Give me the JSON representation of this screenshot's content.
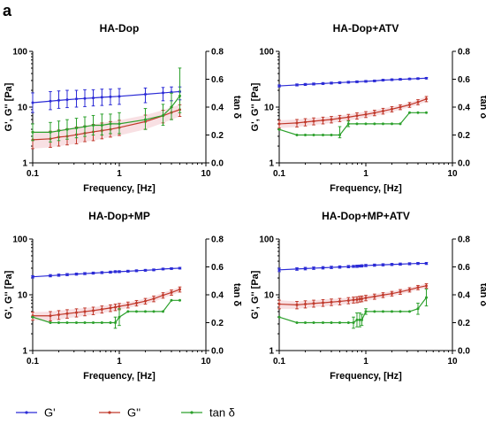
{
  "figure_label": "a",
  "colors": {
    "G_prime": "#2b2bd6",
    "G_double_prime": "#c0392b",
    "tan_delta": "#2ca02c",
    "axis": "#000000",
    "band": "#f3c6cc"
  },
  "legend": [
    {
      "label": "G'",
      "series": "G_prime"
    },
    {
      "label": "G''",
      "series": "G_double_prime"
    },
    {
      "label": "tan δ",
      "series": "tan_delta"
    }
  ],
  "chart_data": [
    {
      "type": "line",
      "title": "HA-Dop",
      "xlabel": "Frequency, [Hz]",
      "ylabel": "G', G'' [Pa]",
      "ylabel_right": "tan δ",
      "x_scale": "log",
      "xlim": [
        0.1,
        10
      ],
      "x_ticks": [
        "0.1",
        "1",
        "10"
      ],
      "y_scale": "log",
      "ylim": [
        1,
        100
      ],
      "y_ticks": [
        "1",
        "10",
        "100"
      ],
      "y2_scale": "linear",
      "y2lim": [
        0,
        0.8
      ],
      "y2_ticks": [
        "0.0",
        "0.2",
        "0.4",
        "0.6",
        "0.8"
      ],
      "grid": false,
      "x": [
        0.1,
        0.16,
        0.2,
        0.25,
        0.32,
        0.4,
        0.5,
        0.63,
        0.79,
        1.0,
        2.0,
        3.2,
        4.0,
        5.0
      ],
      "series": [
        {
          "key": "G_prime",
          "axis": "left",
          "values": [
            12.0,
            12.8,
            13.2,
            13.6,
            14.0,
            14.3,
            14.6,
            15.0,
            15.3,
            15.6,
            17.0,
            18.0,
            18.5,
            19.0
          ],
          "err_low": [
            8.0,
            9.0,
            9.5,
            9.8,
            10.0,
            10.2,
            10.5,
            10.7,
            11.0,
            11.2,
            12.0,
            13.0,
            13.0,
            13.5
          ],
          "err_high": [
            18.0,
            19.0,
            19.5,
            20.0,
            20.0,
            20.5,
            20.5,
            21.0,
            21.0,
            21.5,
            22.0,
            22.5,
            23.0,
            23.0
          ]
        },
        {
          "key": "G_double_prime",
          "axis": "left",
          "values": [
            2.6,
            2.7,
            2.9,
            3.0,
            3.2,
            3.4,
            3.6,
            3.8,
            4.0,
            4.3,
            5.5,
            7.0,
            8.0,
            9.0
          ],
          "err_low": [
            1.8,
            1.9,
            2.0,
            2.1,
            2.2,
            2.4,
            2.5,
            2.7,
            2.9,
            3.1,
            4.0,
            5.2,
            6.0,
            6.8
          ],
          "err_high": [
            3.6,
            3.7,
            3.9,
            4.1,
            4.4,
            4.6,
            4.9,
            5.2,
            5.5,
            5.8,
            7.2,
            8.8,
            10.0,
            11.0
          ]
        },
        {
          "key": "tan_delta",
          "axis": "right",
          "values": [
            0.22,
            0.22,
            0.23,
            0.24,
            0.25,
            0.26,
            0.27,
            0.27,
            0.28,
            0.28,
            0.31,
            0.34,
            0.4,
            0.48
          ],
          "err_low": [
            0.16,
            0.15,
            0.16,
            0.17,
            0.18,
            0.19,
            0.2,
            0.2,
            0.21,
            0.21,
            0.24,
            0.27,
            0.31,
            0.36
          ],
          "err_high": [
            0.28,
            0.29,
            0.3,
            0.31,
            0.32,
            0.33,
            0.34,
            0.35,
            0.35,
            0.36,
            0.39,
            0.42,
            0.5,
            0.68
          ]
        }
      ]
    },
    {
      "type": "line",
      "title": "HA-Dop+ATV",
      "xlabel": "Frequency, [Hz]",
      "ylabel": "G', G'' [Pa]",
      "ylabel_right": "tan δ",
      "x_scale": "log",
      "xlim": [
        0.1,
        10
      ],
      "x_ticks": [
        "0.1",
        "1",
        "10"
      ],
      "y_scale": "log",
      "ylim": [
        1,
        100
      ],
      "y_ticks": [
        "1",
        "10",
        "100"
      ],
      "y2_scale": "linear",
      "y2lim": [
        0,
        0.8
      ],
      "y2_ticks": [
        "0.0",
        "0.2",
        "0.4",
        "0.6",
        "0.8"
      ],
      "grid": false,
      "x": [
        0.1,
        0.16,
        0.2,
        0.25,
        0.32,
        0.4,
        0.5,
        0.63,
        0.79,
        1.0,
        1.26,
        1.58,
        2.0,
        2.5,
        3.2,
        4.0,
        5.0
      ],
      "series": [
        {
          "key": "G_prime",
          "axis": "left",
          "values": [
            24.0,
            25.0,
            25.5,
            26.0,
            26.5,
            27.0,
            27.5,
            28.0,
            28.5,
            29.0,
            29.5,
            30.5,
            31.0,
            31.5,
            32.0,
            32.5,
            33.0
          ],
          "err_low": [
            23.0,
            24.0,
            24.5,
            25.0,
            25.5,
            26.0,
            26.5,
            27.0,
            27.5,
            28.0,
            28.5,
            29.5,
            30.0,
            30.5,
            31.0,
            31.5,
            32.0
          ],
          "err_high": [
            25.0,
            26.0,
            26.5,
            27.0,
            27.5,
            28.0,
            28.5,
            29.0,
            29.5,
            30.0,
            30.5,
            31.5,
            32.0,
            32.5,
            33.0,
            33.5,
            34.0
          ]
        },
        {
          "key": "G_double_prime",
          "axis": "left",
          "values": [
            5.0,
            5.2,
            5.4,
            5.6,
            5.8,
            6.0,
            6.3,
            6.6,
            7.0,
            7.4,
            7.9,
            8.5,
            9.2,
            10.0,
            11.0,
            12.3,
            14.0
          ],
          "err_low": [
            4.2,
            4.4,
            4.6,
            4.8,
            5.0,
            5.2,
            5.5,
            5.8,
            6.1,
            6.5,
            7.0,
            7.5,
            8.2,
            9.0,
            9.9,
            11.0,
            12.5
          ],
          "err_high": [
            5.8,
            6.0,
            6.2,
            6.4,
            6.6,
            6.8,
            7.1,
            7.4,
            7.9,
            8.3,
            8.8,
            9.5,
            10.2,
            11.0,
            12.1,
            13.6,
            15.5
          ]
        },
        {
          "key": "tan_delta",
          "axis": "right",
          "values": [
            0.24,
            0.2,
            0.2,
            0.2,
            0.2,
            0.2,
            0.2,
            0.28,
            0.28,
            0.28,
            0.28,
            0.28,
            0.28,
            0.28,
            0.36,
            0.36,
            0.36
          ],
          "err_low": [
            0.24,
            0.2,
            0.2,
            0.2,
            0.2,
            0.2,
            0.18,
            0.26,
            0.28,
            0.28,
            0.28,
            0.28,
            0.28,
            0.28,
            0.36,
            0.36,
            0.36
          ],
          "err_high": [
            0.24,
            0.2,
            0.2,
            0.2,
            0.2,
            0.2,
            0.26,
            0.3,
            0.28,
            0.28,
            0.28,
            0.28,
            0.28,
            0.28,
            0.36,
            0.36,
            0.36
          ]
        }
      ]
    },
    {
      "type": "line",
      "title": "HA-Dop+MP",
      "xlabel": "Frequency, [Hz]",
      "ylabel": "G', G'' [Pa]",
      "ylabel_right": "tan δ",
      "x_scale": "log",
      "xlim": [
        0.1,
        10
      ],
      "x_ticks": [
        "0.1",
        "1",
        "10"
      ],
      "y_scale": "log",
      "ylim": [
        1,
        100
      ],
      "y_ticks": [
        "1",
        "10",
        "100"
      ],
      "y2_scale": "linear",
      "y2lim": [
        0,
        0.8
      ],
      "y2_ticks": [
        "0.0",
        "0.2",
        "0.4",
        "0.6",
        "0.8"
      ],
      "grid": false,
      "x": [
        0.1,
        0.16,
        0.2,
        0.25,
        0.32,
        0.4,
        0.5,
        0.63,
        0.79,
        0.9,
        1.0,
        1.26,
        1.58,
        2.0,
        2.5,
        3.2,
        4.0,
        5.0
      ],
      "series": [
        {
          "key": "G_prime",
          "axis": "left",
          "values": [
            21.0,
            22.0,
            22.5,
            23.0,
            23.5,
            24.0,
            24.5,
            25.0,
            25.5,
            26.0,
            26.0,
            26.5,
            27.0,
            27.5,
            28.0,
            29.0,
            29.5,
            30.0
          ],
          "err_low": [
            20.0,
            21.0,
            21.5,
            22.0,
            22.5,
            23.0,
            23.5,
            24.0,
            24.5,
            25.0,
            25.0,
            25.5,
            26.0,
            26.5,
            27.0,
            28.0,
            28.5,
            29.0
          ],
          "err_high": [
            22.0,
            23.0,
            23.5,
            24.0,
            24.5,
            25.0,
            25.5,
            26.0,
            26.5,
            27.0,
            27.0,
            27.5,
            28.0,
            28.5,
            29.0,
            30.0,
            30.5,
            31.0
          ]
        },
        {
          "key": "G_double_prime",
          "axis": "left",
          "values": [
            4.2,
            4.2,
            4.4,
            4.6,
            4.8,
            5.0,
            5.2,
            5.5,
            5.8,
            6.0,
            6.2,
            6.6,
            7.1,
            7.7,
            8.5,
            9.8,
            11.0,
            12.5
          ],
          "err_low": [
            3.5,
            3.4,
            3.6,
            3.8,
            4.0,
            4.2,
            4.4,
            4.7,
            5.0,
            5.2,
            5.4,
            5.8,
            6.3,
            6.8,
            7.5,
            8.7,
            9.8,
            11.2
          ],
          "err_high": [
            4.9,
            5.0,
            5.2,
            5.4,
            5.6,
            5.8,
            6.0,
            6.3,
            6.6,
            6.8,
            7.0,
            7.4,
            7.9,
            8.6,
            9.5,
            10.9,
            12.2,
            13.8
          ]
        },
        {
          "key": "tan_delta",
          "axis": "right",
          "values": [
            0.24,
            0.2,
            0.2,
            0.2,
            0.2,
            0.2,
            0.2,
            0.2,
            0.2,
            0.2,
            0.24,
            0.28,
            0.28,
            0.28,
            0.28,
            0.28,
            0.36,
            0.36
          ],
          "err_low": [
            0.24,
            0.2,
            0.2,
            0.2,
            0.2,
            0.2,
            0.2,
            0.2,
            0.2,
            0.16,
            0.18,
            0.28,
            0.28,
            0.28,
            0.28,
            0.28,
            0.36,
            0.36
          ],
          "err_high": [
            0.24,
            0.2,
            0.2,
            0.2,
            0.2,
            0.2,
            0.2,
            0.2,
            0.2,
            0.24,
            0.3,
            0.28,
            0.28,
            0.28,
            0.28,
            0.28,
            0.36,
            0.36
          ]
        }
      ]
    },
    {
      "type": "line",
      "title": "HA-Dop+MP+ATV",
      "xlabel": "Frequency, [Hz]",
      "ylabel": "G', G'' [Pa]",
      "ylabel_right": "tan δ",
      "x_scale": "log",
      "xlim": [
        0.1,
        10
      ],
      "x_ticks": [
        "0.1",
        "1",
        "10"
      ],
      "y_scale": "log",
      "ylim": [
        1,
        100
      ],
      "y_ticks": [
        "1",
        "10",
        "100"
      ],
      "y2_scale": "linear",
      "y2lim": [
        0,
        0.8
      ],
      "y2_ticks": [
        "0.0",
        "0.2",
        "0.4",
        "0.6",
        "0.8"
      ],
      "grid": false,
      "x": [
        0.1,
        0.16,
        0.2,
        0.25,
        0.32,
        0.4,
        0.5,
        0.63,
        0.72,
        0.79,
        0.85,
        0.9,
        1.0,
        1.26,
        1.58,
        2.0,
        2.5,
        3.2,
        4.0,
        5.0
      ],
      "series": [
        {
          "key": "G_prime",
          "axis": "left",
          "values": [
            28.0,
            29.0,
            29.5,
            30.0,
            30.5,
            31.0,
            31.5,
            32.0,
            32.3,
            32.5,
            32.8,
            33.0,
            33.5,
            34.0,
            34.5,
            35.0,
            35.5,
            36.0,
            36.5,
            36.5
          ],
          "err_low": [
            26.0,
            27.5,
            28.0,
            28.5,
            29.0,
            29.5,
            30.0,
            30.5,
            31.0,
            31.0,
            31.5,
            31.5,
            32.0,
            32.5,
            33.0,
            33.5,
            34.0,
            34.5,
            35.0,
            35.0
          ],
          "err_high": [
            30.0,
            30.5,
            31.0,
            31.5,
            32.0,
            32.5,
            33.0,
            33.5,
            33.6,
            34.0,
            34.1,
            34.5,
            35.0,
            35.5,
            36.0,
            36.5,
            37.0,
            37.5,
            38.0,
            38.0
          ]
        },
        {
          "key": "G_double_prime",
          "axis": "left",
          "values": [
            6.8,
            6.6,
            6.8,
            7.0,
            7.2,
            7.4,
            7.6,
            7.9,
            8.1,
            8.2,
            8.4,
            8.5,
            8.8,
            9.3,
            9.9,
            10.5,
            11.3,
            12.3,
            13.5,
            14.5
          ],
          "err_low": [
            5.6,
            5.6,
            5.8,
            6.0,
            6.2,
            6.4,
            6.6,
            6.9,
            7.1,
            7.2,
            7.4,
            7.5,
            7.8,
            8.3,
            8.9,
            9.5,
            10.2,
            11.2,
            12.3,
            13.2
          ],
          "err_high": [
            8.0,
            7.6,
            7.8,
            8.0,
            8.2,
            8.4,
            8.6,
            8.9,
            9.1,
            9.2,
            9.4,
            9.5,
            9.8,
            10.3,
            10.9,
            11.5,
            12.4,
            13.4,
            14.7,
            15.8
          ]
        },
        {
          "key": "tan_delta",
          "axis": "right",
          "values": [
            0.24,
            0.2,
            0.2,
            0.2,
            0.2,
            0.2,
            0.2,
            0.2,
            0.2,
            0.22,
            0.22,
            0.22,
            0.28,
            0.28,
            0.28,
            0.28,
            0.28,
            0.28,
            0.3,
            0.38
          ],
          "err_low": [
            0.24,
            0.2,
            0.2,
            0.2,
            0.2,
            0.2,
            0.2,
            0.2,
            0.16,
            0.17,
            0.17,
            0.18,
            0.26,
            0.28,
            0.28,
            0.28,
            0.28,
            0.28,
            0.26,
            0.32
          ],
          "err_high": [
            0.24,
            0.2,
            0.2,
            0.2,
            0.2,
            0.2,
            0.2,
            0.2,
            0.24,
            0.27,
            0.27,
            0.26,
            0.3,
            0.28,
            0.28,
            0.28,
            0.28,
            0.28,
            0.34,
            0.44
          ]
        }
      ]
    }
  ]
}
